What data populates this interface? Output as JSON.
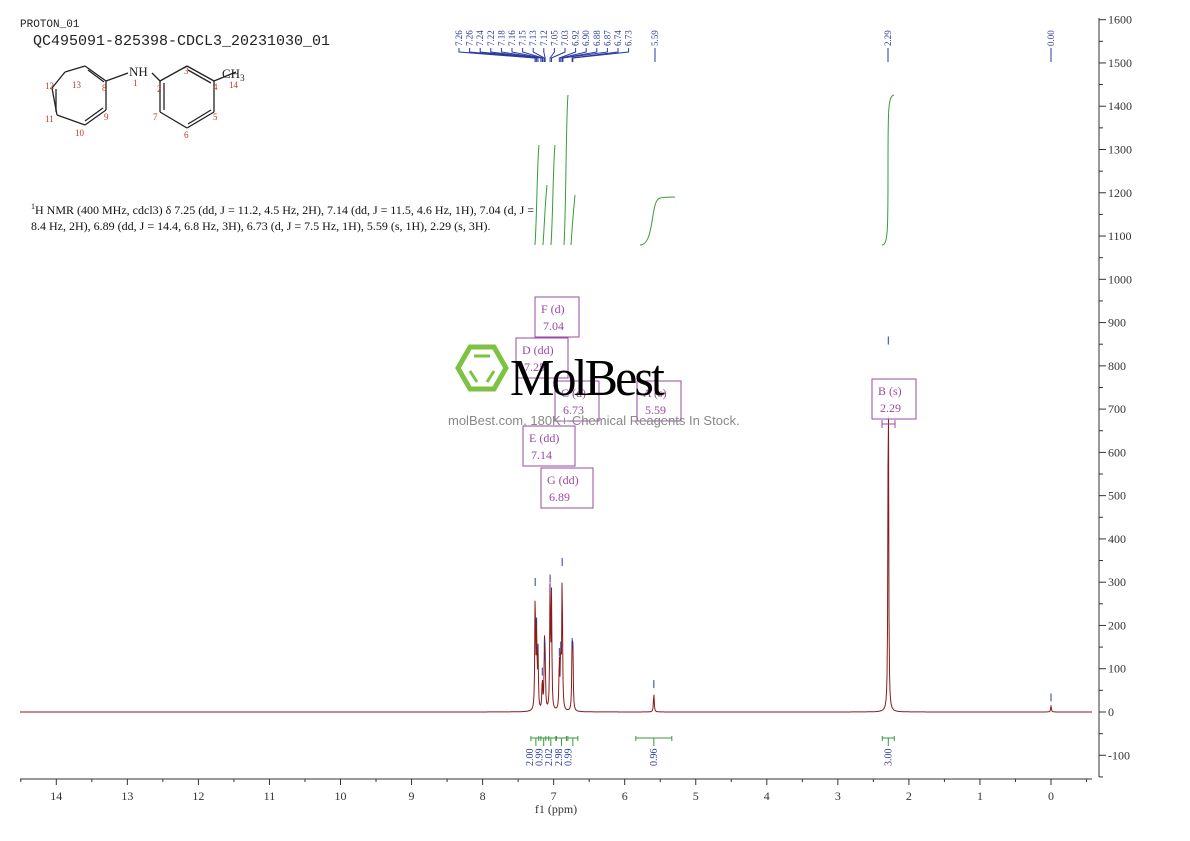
{
  "header": {
    "experiment": "PROTON_01",
    "sample_id": "QC495091-825398-CDCL3_20231030_01"
  },
  "molecule": {
    "atom_labels": [
      "1",
      "2",
      "3",
      "4",
      "5",
      "6",
      "7",
      "8",
      "9",
      "10",
      "11",
      "12",
      "13",
      "14"
    ],
    "nh_label": "NH",
    "ch3_label": "CH3"
  },
  "nmr_description": {
    "line1": "H NMR (400 MHz, cdcl3) δ 7.25 (dd, J = 11.2, 4.5 Hz, 2H), 7.14 (dd, J = 11.5, 4.6 Hz, 1H), 7.04 (d, J =",
    "line2": "8.4 Hz, 2H), 6.89 (dd, J = 14.4, 6.8 Hz, 3H), 6.73 (d, J = 7.5 Hz, 1H), 5.59 (s, 1H), 2.29 (s, 3H)."
  },
  "watermark": {
    "brand": "MolBest",
    "tagline": "molBest.com, 180K+ Chemical Reagents In Stock."
  },
  "chart_data": {
    "type": "line",
    "title": "QC495091-825398-CDCL3_20231030_01",
    "subtitle": "PROTON_01",
    "xlabel": "f1 (ppm)",
    "ylabel": "",
    "xlim": [
      14.5,
      -0.6
    ],
    "ylim": [
      -150,
      1600
    ],
    "x_ticks": [
      14,
      13,
      12,
      11,
      10,
      9,
      8,
      7,
      6,
      5,
      4,
      3,
      2,
      1,
      0
    ],
    "y_ticks": [
      -100,
      0,
      100,
      200,
      300,
      400,
      500,
      600,
      700,
      800,
      900,
      1000,
      1100,
      1200,
      1300,
      1400,
      1500,
      1600
    ],
    "grid": false,
    "peak_labels": [
      "7.26",
      "7.26",
      "7.24",
      "7.22",
      "7.18",
      "7.16",
      "7.15",
      "7.13",
      "7.12",
      "7.05",
      "7.03",
      "6.92",
      "6.90",
      "6.88",
      "6.87",
      "6.74",
      "6.73",
      "5.59",
      "2.29",
      "0.00"
    ],
    "peaks": [
      {
        "ppm": 7.26,
        "intensity": 282
      },
      {
        "ppm": 7.24,
        "intensity": 190
      },
      {
        "ppm": 7.22,
        "intensity": 130
      },
      {
        "ppm": 7.16,
        "intensity": 75
      },
      {
        "ppm": 7.13,
        "intensity": 140
      },
      {
        "ppm": 7.12,
        "intensity": 110
      },
      {
        "ppm": 7.05,
        "intensity": 290
      },
      {
        "ppm": 7.03,
        "intensity": 260
      },
      {
        "ppm": 6.92,
        "intensity": 120
      },
      {
        "ppm": 6.9,
        "intensity": 135
      },
      {
        "ppm": 6.88,
        "intensity": 328
      },
      {
        "ppm": 6.74,
        "intensity": 143
      },
      {
        "ppm": 6.73,
        "intensity": 135
      },
      {
        "ppm": 5.59,
        "intensity": 46
      },
      {
        "ppm": 2.29,
        "intensity": 840
      },
      {
        "ppm": 0.0,
        "intensity": 15
      }
    ],
    "multiplets": [
      {
        "label": "F (d)",
        "shift": "7.04"
      },
      {
        "label": "D (dd)",
        "shift": "7.25"
      },
      {
        "label": "C (d)",
        "shift": "6.73"
      },
      {
        "label": "A (s)",
        "shift": "5.59"
      },
      {
        "label": "E (dd)",
        "shift": "7.14"
      },
      {
        "label": "G (dd)",
        "shift": "6.89"
      },
      {
        "label": "B (s)",
        "shift": "2.29"
      }
    ],
    "integrals": [
      {
        "ppm": 7.25,
        "value": "2.00"
      },
      {
        "ppm": 7.14,
        "value": "0.99"
      },
      {
        "ppm": 7.04,
        "value": "2.02"
      },
      {
        "ppm": 6.89,
        "value": "2.98"
      },
      {
        "ppm": 6.73,
        "value": "0.99"
      },
      {
        "ppm": 5.59,
        "value": "0.96"
      },
      {
        "ppm": 2.29,
        "value": "3.00"
      }
    ]
  },
  "colors": {
    "spectrum": "#8b1a1a",
    "peak_marker": "#2a3aa0",
    "integral": "#3a9a3a",
    "multiplet_box": "#9a4aa0",
    "axis": "#333333",
    "brand_green": "#7dc242"
  }
}
